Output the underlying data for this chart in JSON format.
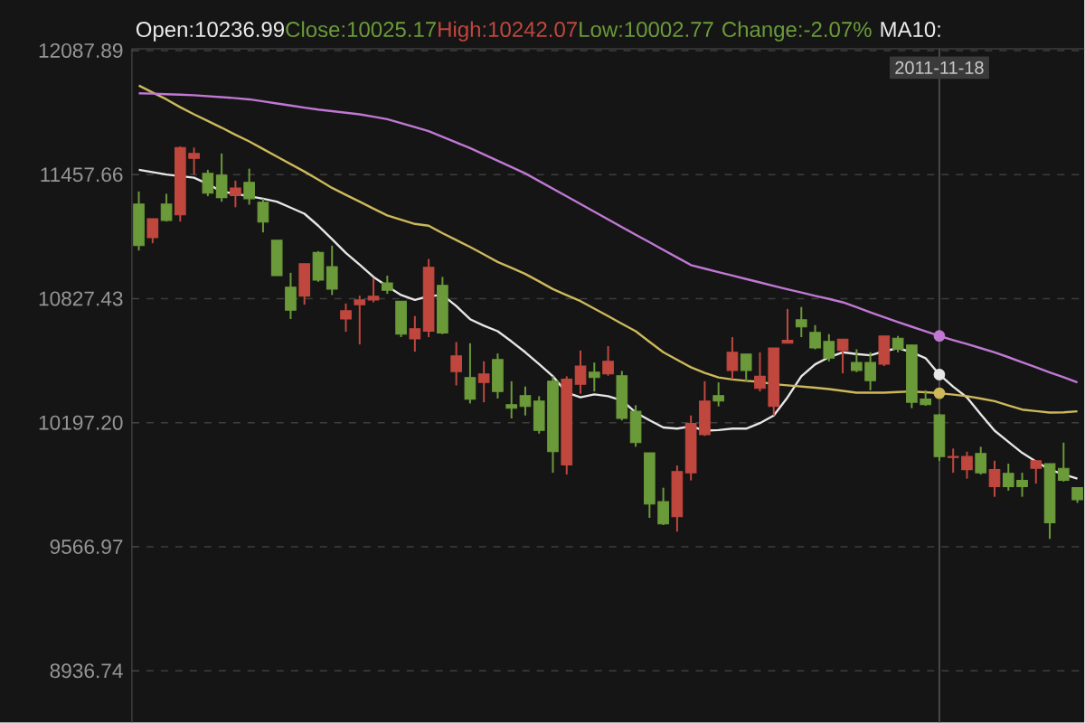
{
  "chart_data": {
    "type": "candlestick",
    "categories": [
      null,
      null,
      null,
      null,
      null,
      null,
      null,
      null,
      null,
      null,
      null,
      null,
      null,
      null,
      null,
      null,
      null,
      null,
      null,
      null,
      null,
      null,
      null,
      null,
      null,
      null,
      null,
      null,
      null,
      null,
      null,
      null,
      null,
      null,
      null,
      null,
      null,
      null,
      null,
      null,
      null,
      null,
      null,
      null,
      null,
      null,
      null,
      null,
      null,
      null,
      null,
      null,
      null,
      null,
      null,
      null,
      null,
      null,
      "2011-11-18",
      null,
      null,
      null,
      null,
      null,
      null,
      null,
      null,
      null,
      null
    ],
    "ohlc": [
      [
        11308,
        11372,
        11072,
        11097
      ],
      [
        11137,
        11234,
        11109,
        11234
      ],
      [
        11308,
        11360,
        11219,
        11225
      ],
      [
        11253,
        11601,
        11219,
        11595
      ],
      [
        11540,
        11595,
        11458,
        11565
      ],
      [
        11464,
        11482,
        11348,
        11363
      ],
      [
        11455,
        11565,
        11320,
        11341
      ],
      [
        11351,
        11427,
        11292,
        11390
      ],
      [
        11418,
        11488,
        11305,
        11335
      ],
      [
        11317,
        11335,
        11164,
        11216
      ],
      [
        11124,
        11124,
        10944,
        10944
      ],
      [
        10886,
        10959,
        10724,
        10769
      ],
      [
        10840,
        11005,
        10797,
        11005
      ],
      [
        11063,
        11069,
        10913,
        10922
      ],
      [
        10990,
        11097,
        10846,
        10876
      ],
      [
        10724,
        10803,
        10659,
        10766
      ],
      [
        10797,
        10843,
        10595,
        10821
      ],
      [
        10821,
        10932,
        10809,
        10840
      ],
      [
        10907,
        10944,
        10852,
        10870
      ],
      [
        10815,
        10815,
        10632,
        10647
      ],
      [
        10623,
        10739,
        10558,
        10675
      ],
      [
        10662,
        11029,
        10632,
        10987
      ],
      [
        10895,
        10938,
        10647,
        10653
      ],
      [
        10457,
        10607,
        10387,
        10537
      ],
      [
        10427,
        10601,
        10295,
        10317
      ],
      [
        10402,
        10509,
        10301,
        10445
      ],
      [
        10518,
        10549,
        10320,
        10356
      ],
      [
        10289,
        10408,
        10219,
        10271
      ],
      [
        10335,
        10381,
        10234,
        10280
      ],
      [
        10307,
        10332,
        10142,
        10158
      ],
      [
        10408,
        10433,
        9943,
        10050
      ],
      [
        9983,
        10433,
        9934,
        10418
      ],
      [
        10393,
        10564,
        10344,
        10485
      ],
      [
        10454,
        10503,
        10356,
        10427
      ],
      [
        10445,
        10586,
        10436,
        10509
      ],
      [
        10436,
        10460,
        10209,
        10219
      ],
      [
        10255,
        10286,
        10075,
        10096
      ],
      [
        10044,
        10044,
        9714,
        9784
      ],
      [
        9796,
        9867,
        9677,
        9683
      ],
      [
        9720,
        9980,
        9644,
        9949
      ],
      [
        9943,
        10234,
        9904,
        10194
      ],
      [
        10136,
        10408,
        10130,
        10307
      ],
      [
        10335,
        10402,
        10280,
        10307
      ],
      [
        10463,
        10632,
        10417,
        10555
      ],
      [
        10546,
        10546,
        10408,
        10463
      ],
      [
        10372,
        10555,
        10356,
        10433
      ],
      [
        10280,
        10577,
        10234,
        10577
      ],
      [
        10601,
        10775,
        10601,
        10616
      ],
      [
        10720,
        10785,
        10632,
        10684
      ],
      [
        10656,
        10693,
        10570,
        10577
      ],
      [
        10610,
        10647,
        10509,
        10525
      ],
      [
        10564,
        10622,
        10448,
        10622
      ],
      [
        10503,
        10570,
        10454,
        10463
      ],
      [
        10503,
        10555,
        10362,
        10411
      ],
      [
        10494,
        10638,
        10485,
        10638
      ],
      [
        10626,
        10638,
        10555,
        10570
      ],
      [
        10592,
        10592,
        10271,
        10301
      ],
      [
        10317,
        10362,
        10283,
        10289
      ],
      [
        10236.99,
        10242.07,
        10002.77,
        10025.17
      ],
      [
        10020,
        10066,
        9943,
        10026
      ],
      [
        9959,
        10050,
        9913,
        10026
      ],
      [
        10041,
        10075,
        9934,
        9943
      ],
      [
        9873,
        10004,
        9821,
        9959
      ],
      [
        9940,
        9989,
        9852,
        9873
      ],
      [
        9904,
        9943,
        9821,
        9873
      ],
      [
        9965,
        10004,
        9888,
        10004
      ],
      [
        9989,
        9989,
        9607,
        9689
      ],
      [
        9965,
        10096,
        9898,
        9904
      ],
      [
        9867,
        9867,
        9790,
        9806
      ]
    ],
    "colors": [
      "#6b9a3a",
      "#c0473e",
      "#6b9a3a",
      "#c0473e",
      "#c0473e",
      "#6b9a3a",
      "#6b9a3a",
      "#c0473e",
      "#6b9a3a",
      "#6b9a3a",
      "#6b9a3a",
      "#6b9a3a",
      "#c0473e",
      "#6b9a3a",
      "#6b9a3a",
      "#c0473e",
      "#c0473e",
      "#c0473e",
      "#6b9a3a",
      "#6b9a3a",
      "#c0473e",
      "#c0473e",
      "#6b9a3a",
      "#c0473e",
      "#6b9a3a",
      "#c0473e",
      "#6b9a3a",
      "#6b9a3a",
      "#6b9a3a",
      "#6b9a3a",
      "#6b9a3a",
      "#c0473e",
      "#c0473e",
      "#6b9a3a",
      "#c0473e",
      "#6b9a3a",
      "#6b9a3a",
      "#6b9a3a",
      "#6b9a3a",
      "#c0473e",
      "#c0473e",
      "#c0473e",
      "#6b9a3a",
      "#c0473e",
      "#6b9a3a",
      "#c0473e",
      "#c0473e",
      "#c0473e",
      "#6b9a3a",
      "#6b9a3a",
      "#6b9a3a",
      "#c0473e",
      "#6b9a3a",
      "#6b9a3a",
      "#c0473e",
      "#6b9a3a",
      "#6b9a3a",
      "#6b9a3a",
      "#6b9a3a",
      "#c0473e",
      "#c0473e",
      "#6b9a3a",
      "#c0473e",
      "#6b9a3a",
      "#6b9a3a",
      "#c0473e",
      "#6b9a3a",
      "#6b9a3a",
      "#6b9a3a"
    ],
    "series": [
      {
        "type": "line",
        "color": "#e6e6e6",
        "values": [
          11482,
          11470,
          11458,
          11450,
          11442,
          11410,
          11372,
          11360,
          11348,
          11335,
          11320,
          11290,
          11259,
          11198,
          11130,
          11060,
          11000,
          10938,
          10890,
          10846,
          10821,
          10840,
          10846,
          10790,
          10723,
          10690,
          10662,
          10610,
          10555,
          10495,
          10433,
          10350,
          10326,
          10341,
          10332,
          10310,
          10249,
          10210,
          10173,
          10167,
          10179,
          10157,
          10160,
          10167,
          10167,
          10195,
          10234,
          10326,
          10433,
          10494,
          10530,
          10555,
          10546,
          10540,
          10560,
          10577,
          10555,
          10525,
          10442,
          10380,
          10326,
          10240,
          10157,
          10100,
          10044,
          10000,
          9959,
          9935,
          9913
        ]
      },
      {
        "type": "line",
        "color": "#cdb95a",
        "values": [
          11910,
          11875,
          11840,
          11800,
          11764,
          11730,
          11696,
          11660,
          11626,
          11588,
          11549,
          11511,
          11473,
          11432,
          11390,
          11355,
          11320,
          11285,
          11250,
          11228,
          11207,
          11198,
          11160,
          11125,
          11090,
          11052,
          11014,
          10984,
          10953,
          10915,
          10876,
          10845,
          10815,
          10777,
          10739,
          10700,
          10662,
          10608,
          10555,
          10517,
          10479,
          10450,
          10427,
          10417,
          10410,
          10405,
          10393,
          10387,
          10381,
          10375,
          10368,
          10359,
          10350,
          10350,
          10350,
          10353,
          10356,
          10352,
          10347,
          10340,
          10332,
          10320,
          10307,
          10285,
          10264,
          10256,
          10249,
          10250,
          10255
        ]
      },
      {
        "type": "line",
        "color": "#c078d4",
        "values": [
          11871,
          11869,
          11866,
          11864,
          11861,
          11856,
          11851,
          11846,
          11840,
          11830,
          11819,
          11809,
          11798,
          11788,
          11780,
          11772,
          11764,
          11752,
          11739,
          11719,
          11699,
          11678,
          11650,
          11621,
          11592,
          11560,
          11528,
          11496,
          11464,
          11425,
          11386,
          11347,
          11308,
          11269,
          11230,
          11191,
          11152,
          11114,
          11075,
          11037,
          10998,
          10980,
          10962,
          10945,
          10927,
          10910,
          10892,
          10875,
          10859,
          10842,
          10826,
          10809,
          10784,
          10758,
          10733,
          10708,
          10685,
          10661,
          10638,
          10617,
          10597,
          10576,
          10555,
          10530,
          10504,
          10479,
          10453,
          10428,
          10402
        ]
      }
    ],
    "ylim": [
      8674,
      12097
    ],
    "yticks": [
      8936.74,
      9566.97,
      {
        "value": 10197.2,
        "label": "10197.20"
      },
      10827.43,
      11457.66,
      12087.89
    ],
    "grid": true,
    "annotations": [
      "Open:10236.99",
      "Close:10025.17",
      "High:10242.07",
      "Low:10002.77",
      "Change:-2.07%",
      "MA10:"
    ]
  }
}
